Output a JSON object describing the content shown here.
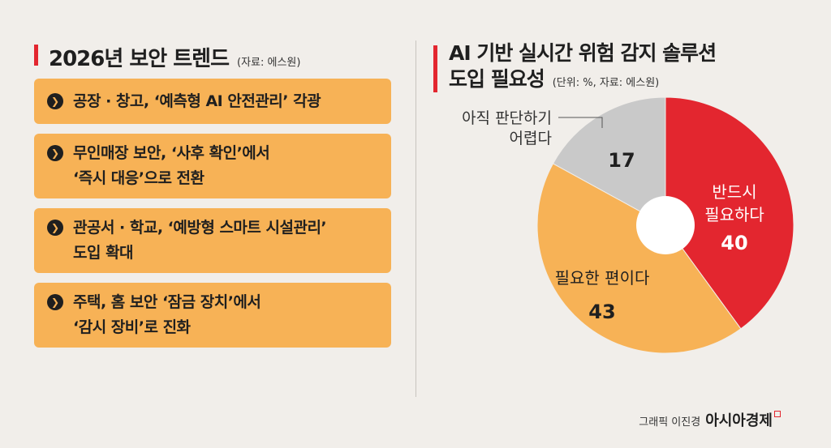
{
  "left_panel": {
    "title": "2026년 보안 트렌드",
    "source": "(자료: 에스원)",
    "items": [
      {
        "lines": [
          "공장 · 창고, ‘예측형 AI 안전관리’ 각광"
        ]
      },
      {
        "lines": [
          "무인매장 보안, ‘사후 확인’에서",
          "‘즉시 대응’으로 전환"
        ]
      },
      {
        "lines": [
          "관공서 · 학교, ‘예방형 스마트 시설관리’",
          "도입 확대"
        ]
      },
      {
        "lines": [
          "주택, 홈 보안 ‘잠금 장치’에서",
          "‘감시 장비’로 진화"
        ]
      }
    ]
  },
  "right_panel": {
    "title_line1": "AI 기반 실시간 위험 감지 솔루션",
    "title_line2": "도입 필요성",
    "unit_source": "(단위: %, 자료: 에스원)"
  },
  "chart_data": {
    "type": "pie",
    "title": "AI 기반 실시간 위험 감지 솔루션 도입 필요성",
    "unit": "%",
    "slices": [
      {
        "label": "반드시 필요하다",
        "label_lines": [
          "반드시",
          "필요하다"
        ],
        "value": 40,
        "color": "#e3262f",
        "text_color": "#ffffff"
      },
      {
        "label": "필요한 편이다",
        "label_lines": [
          "필요한 편이다"
        ],
        "value": 43,
        "color": "#f7b256",
        "text_color": "#1f1f1f"
      },
      {
        "label": "아직 판단하기 어렵다",
        "label_lines": [
          "아직 판단하기",
          "어렵다"
        ],
        "value": 17,
        "color": "#c9c9c9",
        "text_color": "#1f1f1f"
      }
    ]
  },
  "credit": {
    "prefix": "그래픽 이진경",
    "brand": "아시아경제"
  },
  "colors": {
    "accent_red": "#e3262f",
    "orange": "#f7b256",
    "gray": "#c9c9c9",
    "background": "#f1eeea"
  }
}
